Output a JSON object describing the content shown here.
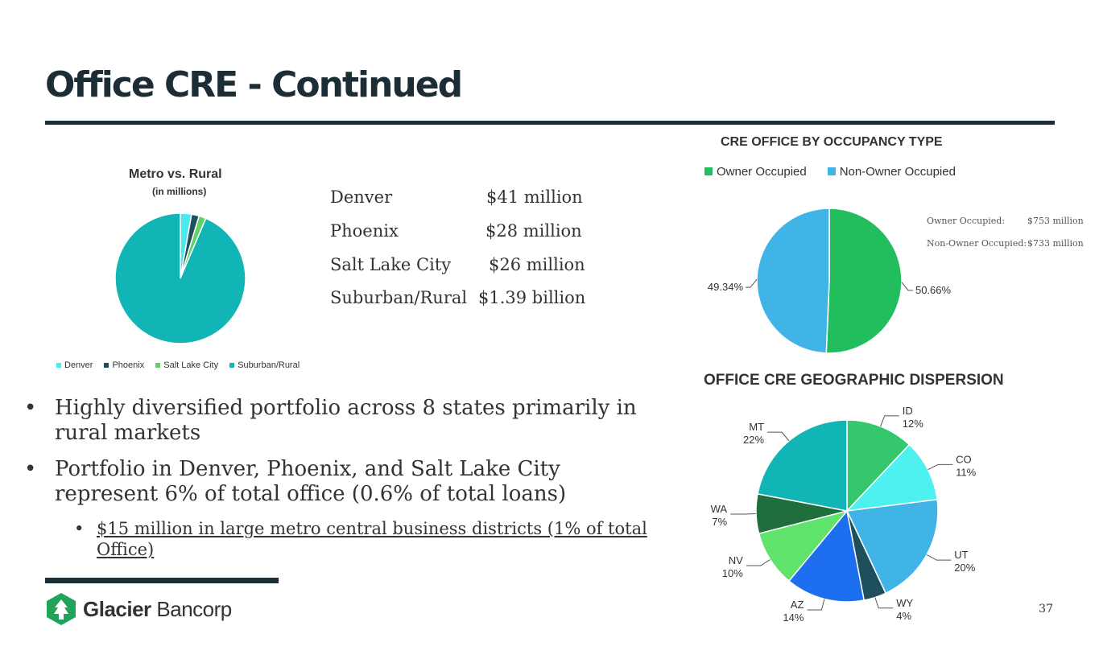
{
  "title": "Office CRE - Continued",
  "page_number": "37",
  "logo": {
    "brand": "Glacier",
    "suffix": "Bancorp"
  },
  "metro_list": [
    {
      "label": "Denver",
      "value": "$41 million"
    },
    {
      "label": "Phoenix",
      "value": "$28 million"
    },
    {
      "label": "Salt Lake City",
      "value": "$26 million"
    },
    {
      "label": "Suburban/Rural",
      "value": "$1.39 billion"
    }
  ],
  "occupancy_notes": [
    {
      "label": "Owner Occupied:",
      "value": "$753 million"
    },
    {
      "label": "Non-Owner Occupied:",
      "value": "$733 million"
    }
  ],
  "bullets": {
    "b1": "Highly diversified portfolio across 8 states primarily in rural markets",
    "b2": "Portfolio in Denver, Phoenix, and Salt Lake City represent 6% of total office (0.6% of total loans)",
    "b3": "$15 million in large metro central business districts (1% of total Office)"
  },
  "chart_data": [
    {
      "type": "pie",
      "title": "Metro vs. Rural",
      "subtitle": "(in millions)",
      "categories": [
        "Denver",
        "Phoenix",
        "Salt Lake City",
        "Suburban/Rural"
      ],
      "values": [
        41,
        28,
        26,
        1390
      ],
      "colors": [
        "#4ee6ef",
        "#1d4f5c",
        "#5fd36a",
        "#12b5b5"
      ],
      "legend_position": "bottom"
    },
    {
      "type": "pie",
      "title": "CRE OFFICE BY OCCUPANCY TYPE",
      "categories": [
        "Owner Occupied",
        "Non-Owner Occupied"
      ],
      "values": [
        50.66,
        49.34
      ],
      "labels": [
        "50.66%",
        "49.34%"
      ],
      "colors": [
        "#22be5e",
        "#40b4e6"
      ],
      "legend_position": "top"
    },
    {
      "type": "pie",
      "title": "OFFICE CRE GEOGRAPHIC DISPERSION",
      "categories": [
        "ID",
        "CO",
        "UT",
        "WY",
        "AZ",
        "NV",
        "WA",
        "MT"
      ],
      "values": [
        12,
        11,
        20,
        4,
        14,
        10,
        7,
        22
      ],
      "labels": [
        "12%",
        "11%",
        "20%",
        "4%",
        "14%",
        "10%",
        "7%",
        "22%"
      ],
      "colors": [
        "#34c76c",
        "#4ff0f0",
        "#40b4e6",
        "#1d4f5c",
        "#1e6ef0",
        "#5fe36a",
        "#1f6e3c",
        "#12b5b5"
      ]
    }
  ],
  "colors": {
    "heading": "#1d2d35",
    "logo_green": "#22a35a"
  }
}
